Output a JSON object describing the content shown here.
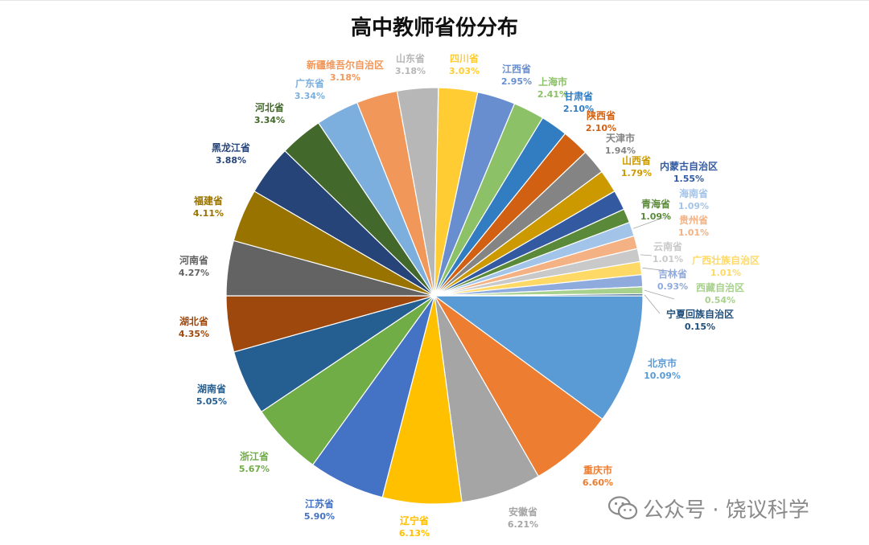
{
  "chart_data": {
    "type": "pie",
    "title": "高中教师省份分布",
    "slices": [
      {
        "label": "北京市",
        "value": 10.09,
        "pct": "10.09%",
        "color": "#5b9bd5"
      },
      {
        "label": "重庆市",
        "value": 6.6,
        "pct": "6.60%",
        "color": "#ed7d31"
      },
      {
        "label": "安徽省",
        "value": 6.21,
        "pct": "6.21%",
        "color": "#a5a5a5"
      },
      {
        "label": "辽宁省",
        "value": 6.13,
        "pct": "6.13%",
        "color": "#ffc000"
      },
      {
        "label": "江苏省",
        "value": 5.9,
        "pct": "5.90%",
        "color": "#4472c4"
      },
      {
        "label": "浙江省",
        "value": 5.67,
        "pct": "5.67%",
        "color": "#70ad47"
      },
      {
        "label": "湖南省",
        "value": 5.05,
        "pct": "5.05%",
        "color": "#255e91"
      },
      {
        "label": "湖北省",
        "value": 4.35,
        "pct": "4.35%",
        "color": "#9e480e"
      },
      {
        "label": "河南省",
        "value": 4.27,
        "pct": "4.27%",
        "color": "#636363"
      },
      {
        "label": "福建省",
        "value": 4.11,
        "pct": "4.11%",
        "color": "#997300"
      },
      {
        "label": "黑龙江省",
        "value": 3.88,
        "pct": "3.88%",
        "color": "#264478"
      },
      {
        "label": "河北省",
        "value": 3.34,
        "pct": "3.34%",
        "color": "#43682b"
      },
      {
        "label": "广东省",
        "value": 3.34,
        "pct": "3.34%",
        "color": "#7cafdd"
      },
      {
        "label": "新疆维吾尔自治区",
        "value": 3.18,
        "pct": "3.18%",
        "color": "#f1975a"
      },
      {
        "label": "山东省",
        "value": 3.18,
        "pct": "3.18%",
        "color": "#b7b7b7"
      },
      {
        "label": "四川省",
        "value": 3.03,
        "pct": "3.03%",
        "color": "#ffcd33"
      },
      {
        "label": "江西省",
        "value": 2.95,
        "pct": "2.95%",
        "color": "#698ed0"
      },
      {
        "label": "上海市",
        "value": 2.41,
        "pct": "2.41%",
        "color": "#8cc168"
      },
      {
        "label": "甘肃省",
        "value": 2.1,
        "pct": "2.10%",
        "color": "#327dc2"
      },
      {
        "label": "陕西省",
        "value": 2.1,
        "pct": "2.10%",
        "color": "#d26012"
      },
      {
        "label": "天津市",
        "value": 1.94,
        "pct": "1.94%",
        "color": "#848484"
      },
      {
        "label": "山西省",
        "value": 1.79,
        "pct": "1.79%",
        "color": "#cc9a00"
      },
      {
        "label": "内蒙古自治区",
        "value": 1.55,
        "pct": "1.55%",
        "color": "#335aa1"
      },
      {
        "label": "青海省",
        "value": 1.09,
        "pct": "1.09%",
        "color": "#5a8a39"
      },
      {
        "label": "海南省",
        "value": 1.09,
        "pct": "1.09%",
        "color": "#a3c4e9"
      },
      {
        "label": "贵州省",
        "value": 1.01,
        "pct": "1.01%",
        "color": "#f4b183"
      },
      {
        "label": "云南省",
        "value": 1.01,
        "pct": "1.01%",
        "color": "#c9c9c9"
      },
      {
        "label": "广西壮族自治区",
        "value": 1.01,
        "pct": "1.01%",
        "color": "#ffd966"
      },
      {
        "label": "吉林省",
        "value": 0.93,
        "pct": "0.93%",
        "color": "#8faadc"
      },
      {
        "label": "西藏自治区",
        "value": 0.54,
        "pct": "0.54%",
        "color": "#a9d18e"
      },
      {
        "label": "宁夏回族自治区",
        "value": 0.15,
        "pct": "0.15%",
        "color": "#1f4e79"
      }
    ]
  },
  "watermark": {
    "icon": "wechat-icon",
    "text": "公众号 · 饶议科学"
  }
}
